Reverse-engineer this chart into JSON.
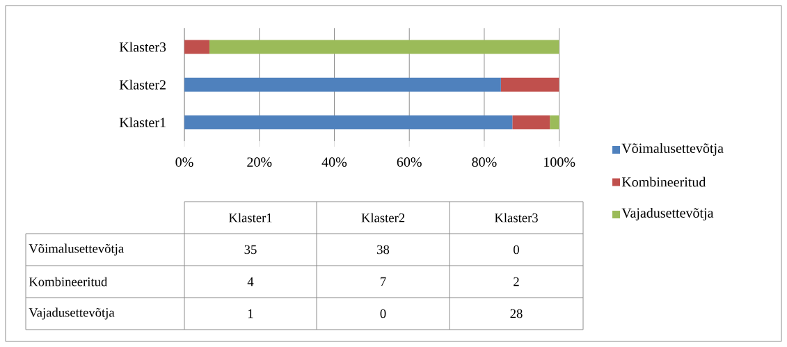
{
  "chart_data": {
    "type": "bar",
    "orientation": "horizontal",
    "stacked": true,
    "categories": [
      "Klaster3",
      "Klaster2",
      "Klaster1"
    ],
    "series": [
      {
        "name": "Võimalusettevõtja",
        "color": "#4f81bd",
        "values": [
          0,
          0.8444,
          0.875
        ]
      },
      {
        "name": "Kombineeritud",
        "color": "#c0504d",
        "values": [
          0.0667,
          0.1556,
          0.1
        ]
      },
      {
        "name": "Vajadusettevõtja",
        "color": "#9bbb59",
        "values": [
          0.9333,
          0,
          0.025
        ]
      }
    ],
    "xlim": [
      0,
      1
    ],
    "xticks": [
      {
        "value": 0,
        "label": "0%"
      },
      {
        "value": 0.2,
        "label": "20%"
      },
      {
        "value": 0.4,
        "label": "40%"
      },
      {
        "value": 0.6,
        "label": "60%"
      },
      {
        "value": 0.8,
        "label": "80%"
      },
      {
        "value": 1,
        "label": "100%"
      }
    ],
    "annotations": [
      "35",
      "38",
      "0",
      "4",
      "7",
      "2",
      "1",
      "0",
      "28"
    ],
    "grid": "x",
    "legend": "right"
  }
}
